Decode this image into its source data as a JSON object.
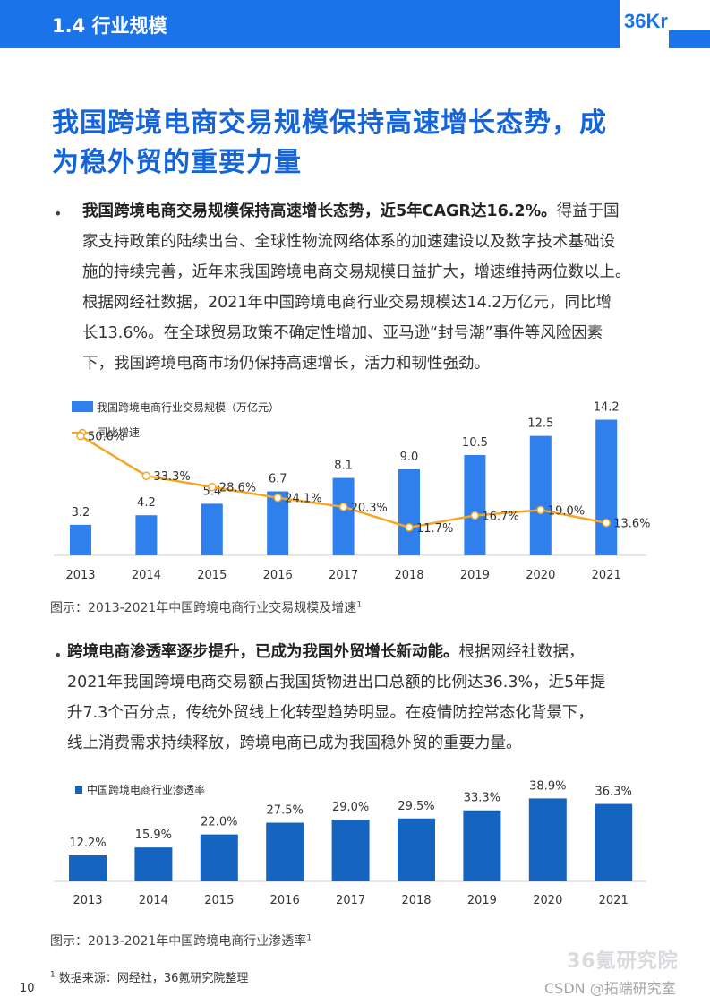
{
  "header": {
    "section_label": "1.4 行业规模",
    "logo_text": "36Kr",
    "accent_color": "#1a73e8",
    "icon": "logo-icon"
  },
  "title": {
    "line1": "我国跨境电商交易规模保持高速增长态势，成",
    "line2": "为稳外贸的重要力量"
  },
  "bullets": [
    {
      "symbol": "•",
      "lead": "我国跨境电商交易规模保持高速增长态势，近5年CAGR达16.2%。",
      "lines": [
        "得益于国",
        "家支持政策的陆续出台、全球性物流网络体系的加速建设以及数字技术基础设",
        "施的持续完善，近年来我国跨境电商交易规模日益扩大，增速维持两位数以上。",
        "根据网经社数据，2021年中国跨境电商行业交易规模达14.2万亿元，同比增",
        "长13.6%。在全球贸易政策不确定性增加、亚马逊“封号潮”事件等风险因素",
        "下，我国跨境电商市场仍保持高速增长，活力和韧性强劲。"
      ]
    },
    {
      "symbol": "•",
      "lead": "跨境电商渗透率逐步提升，已成为我国外贸增长新动能。",
      "lines": [
        "根据网经社数据，",
        "2021年我国跨境电商交易额占我国货物进出口总额的比例达36.3%，近5年提",
        "升7.3个百分点，传统外贸线上化转型趋势明显。在疫情防控常态化背景下，",
        "线上消费需求持续释放，跨境电商已成为我国稳外贸的重要力量。"
      ]
    }
  ],
  "chart_data": [
    {
      "type": "bar",
      "title": "",
      "categories": [
        "2013",
        "2014",
        "2015",
        "2016",
        "2017",
        "2018",
        "2019",
        "2020",
        "2021"
      ],
      "series": [
        {
          "name": "我国跨境电商行业交易规模（万亿元）",
          "kind": "bar",
          "color": "#2f80ed",
          "values": [
            3.2,
            4.2,
            5.4,
            6.7,
            8.1,
            9.0,
            10.5,
            12.5,
            14.2
          ],
          "labels": [
            "3.2",
            "4.2",
            "5.4",
            "6.7",
            "8.1",
            "9.0",
            "10.5",
            "12.5",
            "14.2"
          ]
        },
        {
          "name": "同比增速",
          "kind": "line",
          "color": "#f5a623",
          "values": [
            50.0,
            33.3,
            28.6,
            24.1,
            20.3,
            11.7,
            16.7,
            19.0,
            13.6
          ],
          "labels": [
            "50.0%",
            "33.3%",
            "28.6%",
            "24.1%",
            "20.3%",
            "11.7%",
            "16.7%",
            "19.0%",
            "13.6%"
          ]
        }
      ],
      "ylim": [
        0,
        15
      ],
      "y2lim": [
        0,
        60
      ],
      "legend": "top-left",
      "grid": false
    },
    {
      "type": "bar",
      "title": "",
      "categories": [
        "2013",
        "2014",
        "2015",
        "2016",
        "2017",
        "2018",
        "2019",
        "2020",
        "2021"
      ],
      "series": [
        {
          "name": "中国跨境电商行业渗透率",
          "kind": "bar",
          "color": "#1565c0",
          "values": [
            12.2,
            15.9,
            22.0,
            27.5,
            29.0,
            29.5,
            33.3,
            38.9,
            36.3
          ],
          "labels": [
            "12.2%",
            "15.9%",
            "22.0%",
            "27.5%",
            "29.0%",
            "29.5%",
            "33.3%",
            "38.9%",
            "36.3%"
          ]
        }
      ],
      "ylim": [
        0,
        42
      ],
      "legend": "top-left",
      "grid": false
    }
  ],
  "captions": {
    "chart1": "图示：2013-2021年中国跨境电商行业交易规模及增速",
    "chart2": "图示：2013-2021年中国跨境电商行业渗透率",
    "sup": "1"
  },
  "footnote": {
    "sup": "1",
    "text": "数据来源：网经社，36氪研究院整理"
  },
  "page_number": "10",
  "watermarks": {
    "brand": "36氪研究院",
    "csdn": "CSDN @拓端研究室"
  }
}
